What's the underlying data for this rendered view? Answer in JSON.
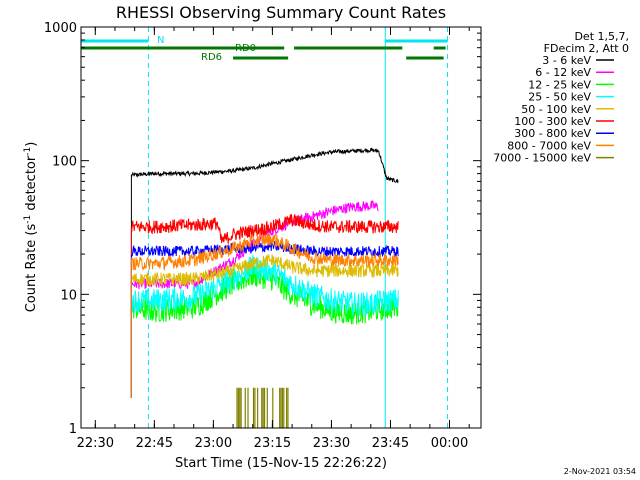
{
  "chart_data": {
    "type": "line",
    "title": "RHESSI Observing Summary Count Rates",
    "xlabel": "Start Time (15-Nov-15 22:26:22)",
    "ylabel": "Count Rate (s",
    "ylabel_sup1": "-1",
    "ylabel_mid": " detector",
    "ylabel_sup2": "-1",
    "ylabel_end": ")",
    "y_scale": "log",
    "xlim": [
      "22:26:22",
      "00:08:00"
    ],
    "ylim": [
      1,
      1000
    ],
    "x_ticks": [
      "22:30",
      "22:45",
      "23:00",
      "23:15",
      "23:30",
      "23:45",
      "00:00"
    ],
    "y_ticks": [
      "1",
      "10",
      "100",
      "1000"
    ],
    "legend_header": [
      "Det 1,5,7,",
      "FDecim 2, Att 0"
    ],
    "legend_position": "right",
    "timestamp": "2-Nov-2021 03:54",
    "annotations": {
      "night_label": "N",
      "rd0_label": "RD0",
      "rd6_label": "RD6"
    },
    "vertical_lines": {
      "solid": [
        "22:26:22",
        "23:43:40"
      ],
      "dashed": [
        "22:43:30",
        "23:59:30"
      ]
    },
    "night_intervals": [
      [
        "22:26:22",
        "22:43:30"
      ],
      [
        "23:43:40",
        "23:59:30"
      ]
    ],
    "rd0_intervals": [
      [
        "22:26:22",
        "23:18:00"
      ],
      [
        "23:20:30",
        "23:48:00"
      ],
      [
        "23:56:00",
        "23:59:00"
      ]
    ],
    "rd6_intervals": [
      [
        "23:05:00",
        "23:19:00"
      ],
      [
        "23:49:00",
        "23:58:30"
      ]
    ],
    "series": [
      {
        "name": "3 - 6 keV",
        "color": "#000000",
        "times": [
          "22:39:10",
          "22:45",
          "22:55",
          "23:05",
          "23:10",
          "23:15",
          "23:20",
          "23:25",
          "23:30",
          "23:35",
          "23:40",
          "23:42",
          "23:44",
          "23:45",
          "23:47"
        ],
        "values": [
          78,
          80,
          80,
          84,
          88,
          95,
          102,
          110,
          116,
          118,
          120,
          118,
          74,
          72,
          70
        ]
      },
      {
        "name": "6 - 12 keV",
        "color": "#ff00ff",
        "times": [
          "22:39:10",
          "22:45",
          "22:55",
          "23:05",
          "23:10",
          "23:15",
          "23:20",
          "23:25",
          "23:30",
          "23:35",
          "23:40",
          "23:42"
        ],
        "values": [
          12,
          12,
          12,
          18,
          24,
          30,
          35,
          38,
          42,
          45,
          46,
          45
        ]
      },
      {
        "name": "12 - 25 keV",
        "color": "#00ff00",
        "times": [
          "22:39:10",
          "22:45",
          "22:55",
          "23:05",
          "23:10",
          "23:15",
          "23:20",
          "23:25",
          "23:30",
          "23:35",
          "23:40",
          "23:45",
          "23:47"
        ],
        "values": [
          8,
          7.5,
          8,
          12,
          14,
          13,
          10,
          8.5,
          7.5,
          7.2,
          7.5,
          8,
          8
        ]
      },
      {
        "name": "25 - 50 keV",
        "color": "#00ffff",
        "times": [
          "22:39:10",
          "22:45",
          "22:55",
          "23:05",
          "23:10",
          "23:15",
          "23:20",
          "23:25",
          "23:30",
          "23:35",
          "23:40",
          "23:45",
          "23:47"
        ],
        "values": [
          9,
          9,
          9.5,
          13,
          16,
          15,
          12,
          10,
          9,
          8.5,
          8.5,
          9,
          9
        ]
      },
      {
        "name": "50 - 100 keV",
        "color": "#ddbb00",
        "times": [
          "22:39:10",
          "22:45",
          "22:55",
          "23:05",
          "23:10",
          "23:15",
          "23:20",
          "23:25",
          "23:30",
          "23:35",
          "23:40",
          "23:45",
          "23:47"
        ],
        "values": [
          13,
          13,
          13,
          15,
          17,
          18,
          16,
          15,
          15,
          15,
          15,
          15,
          15
        ]
      },
      {
        "name": "100 - 300 keV",
        "color": "#ff0000",
        "times": [
          "22:39:10",
          "22:45",
          "22:55",
          "23:01",
          "23:02",
          "23:05",
          "23:10",
          "23:15",
          "23:20",
          "23:25",
          "23:30",
          "23:35",
          "23:40",
          "23:45",
          "23:47"
        ],
        "values": [
          32,
          32,
          33,
          34,
          25,
          28,
          30,
          32,
          36,
          33,
          32,
          32,
          32,
          32,
          32
        ]
      },
      {
        "name": "300 - 800 keV",
        "color": "#0000ff",
        "times": [
          "22:39:10",
          "22:45",
          "22:55",
          "23:05",
          "23:10",
          "23:15",
          "23:20",
          "23:25",
          "23:30",
          "23:35",
          "23:40",
          "23:45",
          "23:47"
        ],
        "values": [
          21,
          21,
          21,
          22,
          22,
          23,
          22,
          21,
          21,
          21,
          21,
          21,
          21
        ]
      },
      {
        "name": "800 - 7000 keV",
        "color": "#ff8000",
        "times": [
          "22:39:10",
          "22:45",
          "22:55",
          "23:05",
          "23:10",
          "23:15",
          "23:20",
          "23:25",
          "23:30",
          "23:35",
          "23:40",
          "23:45",
          "23:47"
        ],
        "values": [
          17,
          17,
          18,
          22,
          25,
          26,
          22,
          19,
          18,
          18,
          18,
          18,
          18
        ]
      },
      {
        "name": "7000 - 15000 keV",
        "color": "#808000",
        "times": [
          "23:06",
          "23:08",
          "23:10",
          "23:12",
          "23:14",
          "23:16",
          "23:18",
          "23:19"
        ],
        "values": [
          2,
          2,
          2,
          2,
          2,
          2,
          2,
          2
        ]
      }
    ]
  }
}
